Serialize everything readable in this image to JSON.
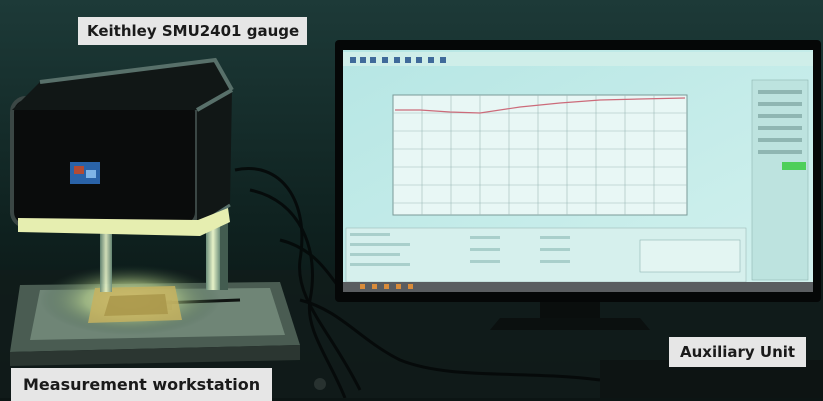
{
  "labels": {
    "gauge": "Keithley SMU2401 gauge",
    "auxiliary": "Auxiliary Unit",
    "workstation": "Measurement workstation"
  },
  "colors": {
    "background": "#0c1514",
    "screen": "#c6ecea",
    "label_background": "#e6e6e6",
    "plot_curve": "#cc6b7a",
    "status_green": "#4ecf5a"
  }
}
